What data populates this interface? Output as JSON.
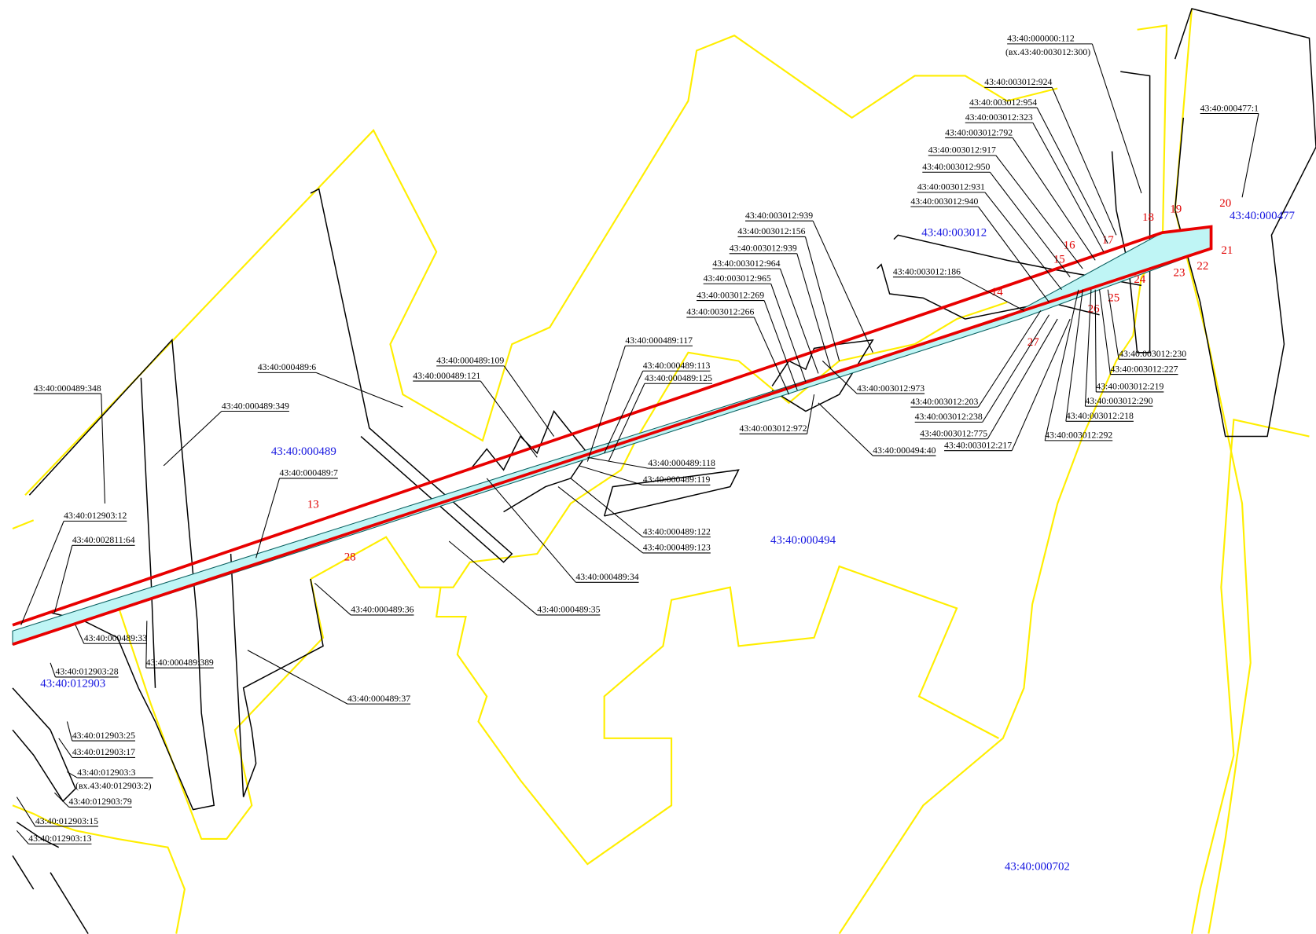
{
  "quarters": [
    "43:40:000477",
    "43:40:003012",
    "43:40:000489",
    "43:40:000494",
    "43:40:012903",
    "43:40:000702"
  ],
  "points": [
    "13",
    "14",
    "15",
    "16",
    "17",
    "18",
    "19",
    "20",
    "21",
    "22",
    "23",
    "24",
    "25",
    "26",
    "27",
    "28"
  ],
  "parcels": [
    {
      "label": "43:40:000000:112",
      "note": "(вх.43:40:003012:300)"
    },
    {
      "label": "43:40:003012:924"
    },
    {
      "label": "43:40:003012:954"
    },
    {
      "label": "43:40:003012:323"
    },
    {
      "label": "43:40:003012:792"
    },
    {
      "label": "43:40:003012:917"
    },
    {
      "label": "43:40:003012:950"
    },
    {
      "label": "43:40:003012:931"
    },
    {
      "label": "43:40:003012:940"
    },
    {
      "label": "43:40:000477:1"
    },
    {
      "label": "43:40:003012:939"
    },
    {
      "label": "43:40:003012:156"
    },
    {
      "label": "43:40:003012:939"
    },
    {
      "label": "43:40:003012:964"
    },
    {
      "label": "43:40:003012:965"
    },
    {
      "label": "43:40:003012:269"
    },
    {
      "label": "43:40:003012:266"
    },
    {
      "label": "43:40:003012:186"
    },
    {
      "label": "43:40:000489:117"
    },
    {
      "label": "43:40:000489:109"
    },
    {
      "label": "43:40:000489:121"
    },
    {
      "label": "43:40:000489:113"
    },
    {
      "label": "43:40:000489:125"
    },
    {
      "label": "43:40:000489:6"
    },
    {
      "label": "43:40:000489:348"
    },
    {
      "label": "43:40:000489:349"
    },
    {
      "label": "43:40:003012:973"
    },
    {
      "label": "43:40:003012:203"
    },
    {
      "label": "43:40:003012:238"
    },
    {
      "label": "43:40:003012:775"
    },
    {
      "label": "43:40:003012:217"
    },
    {
      "label": "43:40:003012:972"
    },
    {
      "label": "43:40:000494:40"
    },
    {
      "label": "43:40:003012:292"
    },
    {
      "label": "43:40:003012:218"
    },
    {
      "label": "43:40:003012:290"
    },
    {
      "label": "43:40:003012:219"
    },
    {
      "label": "43:40:003012:227"
    },
    {
      "label": "43:40:003012:230"
    },
    {
      "label": "43:40:000489:118"
    },
    {
      "label": "43:40:000489:119"
    },
    {
      "label": "43:40:000489:7"
    },
    {
      "label": "43:40:012903:12"
    },
    {
      "label": "43:40:002811:64"
    },
    {
      "label": "43:40:000489:122"
    },
    {
      "label": "43:40:000489:123"
    },
    {
      "label": "43:40:000489:34"
    },
    {
      "label": "43:40:000489:36"
    },
    {
      "label": "43:40:000489:35"
    },
    {
      "label": "43:40:000489:33"
    },
    {
      "label": "43:40:000489:389"
    },
    {
      "label": "43:40:012903:28"
    },
    {
      "label": "43:40:000489:37"
    },
    {
      "label": "43:40:012903:25"
    },
    {
      "label": "43:40:012903:17"
    },
    {
      "label": "43:40:012903:3",
      "note": "(вх.43:40:012903:2)"
    },
    {
      "label": "43:40:012903:79"
    },
    {
      "label": "43:40:012903:15"
    },
    {
      "label": "43:40:012903:13"
    }
  ]
}
